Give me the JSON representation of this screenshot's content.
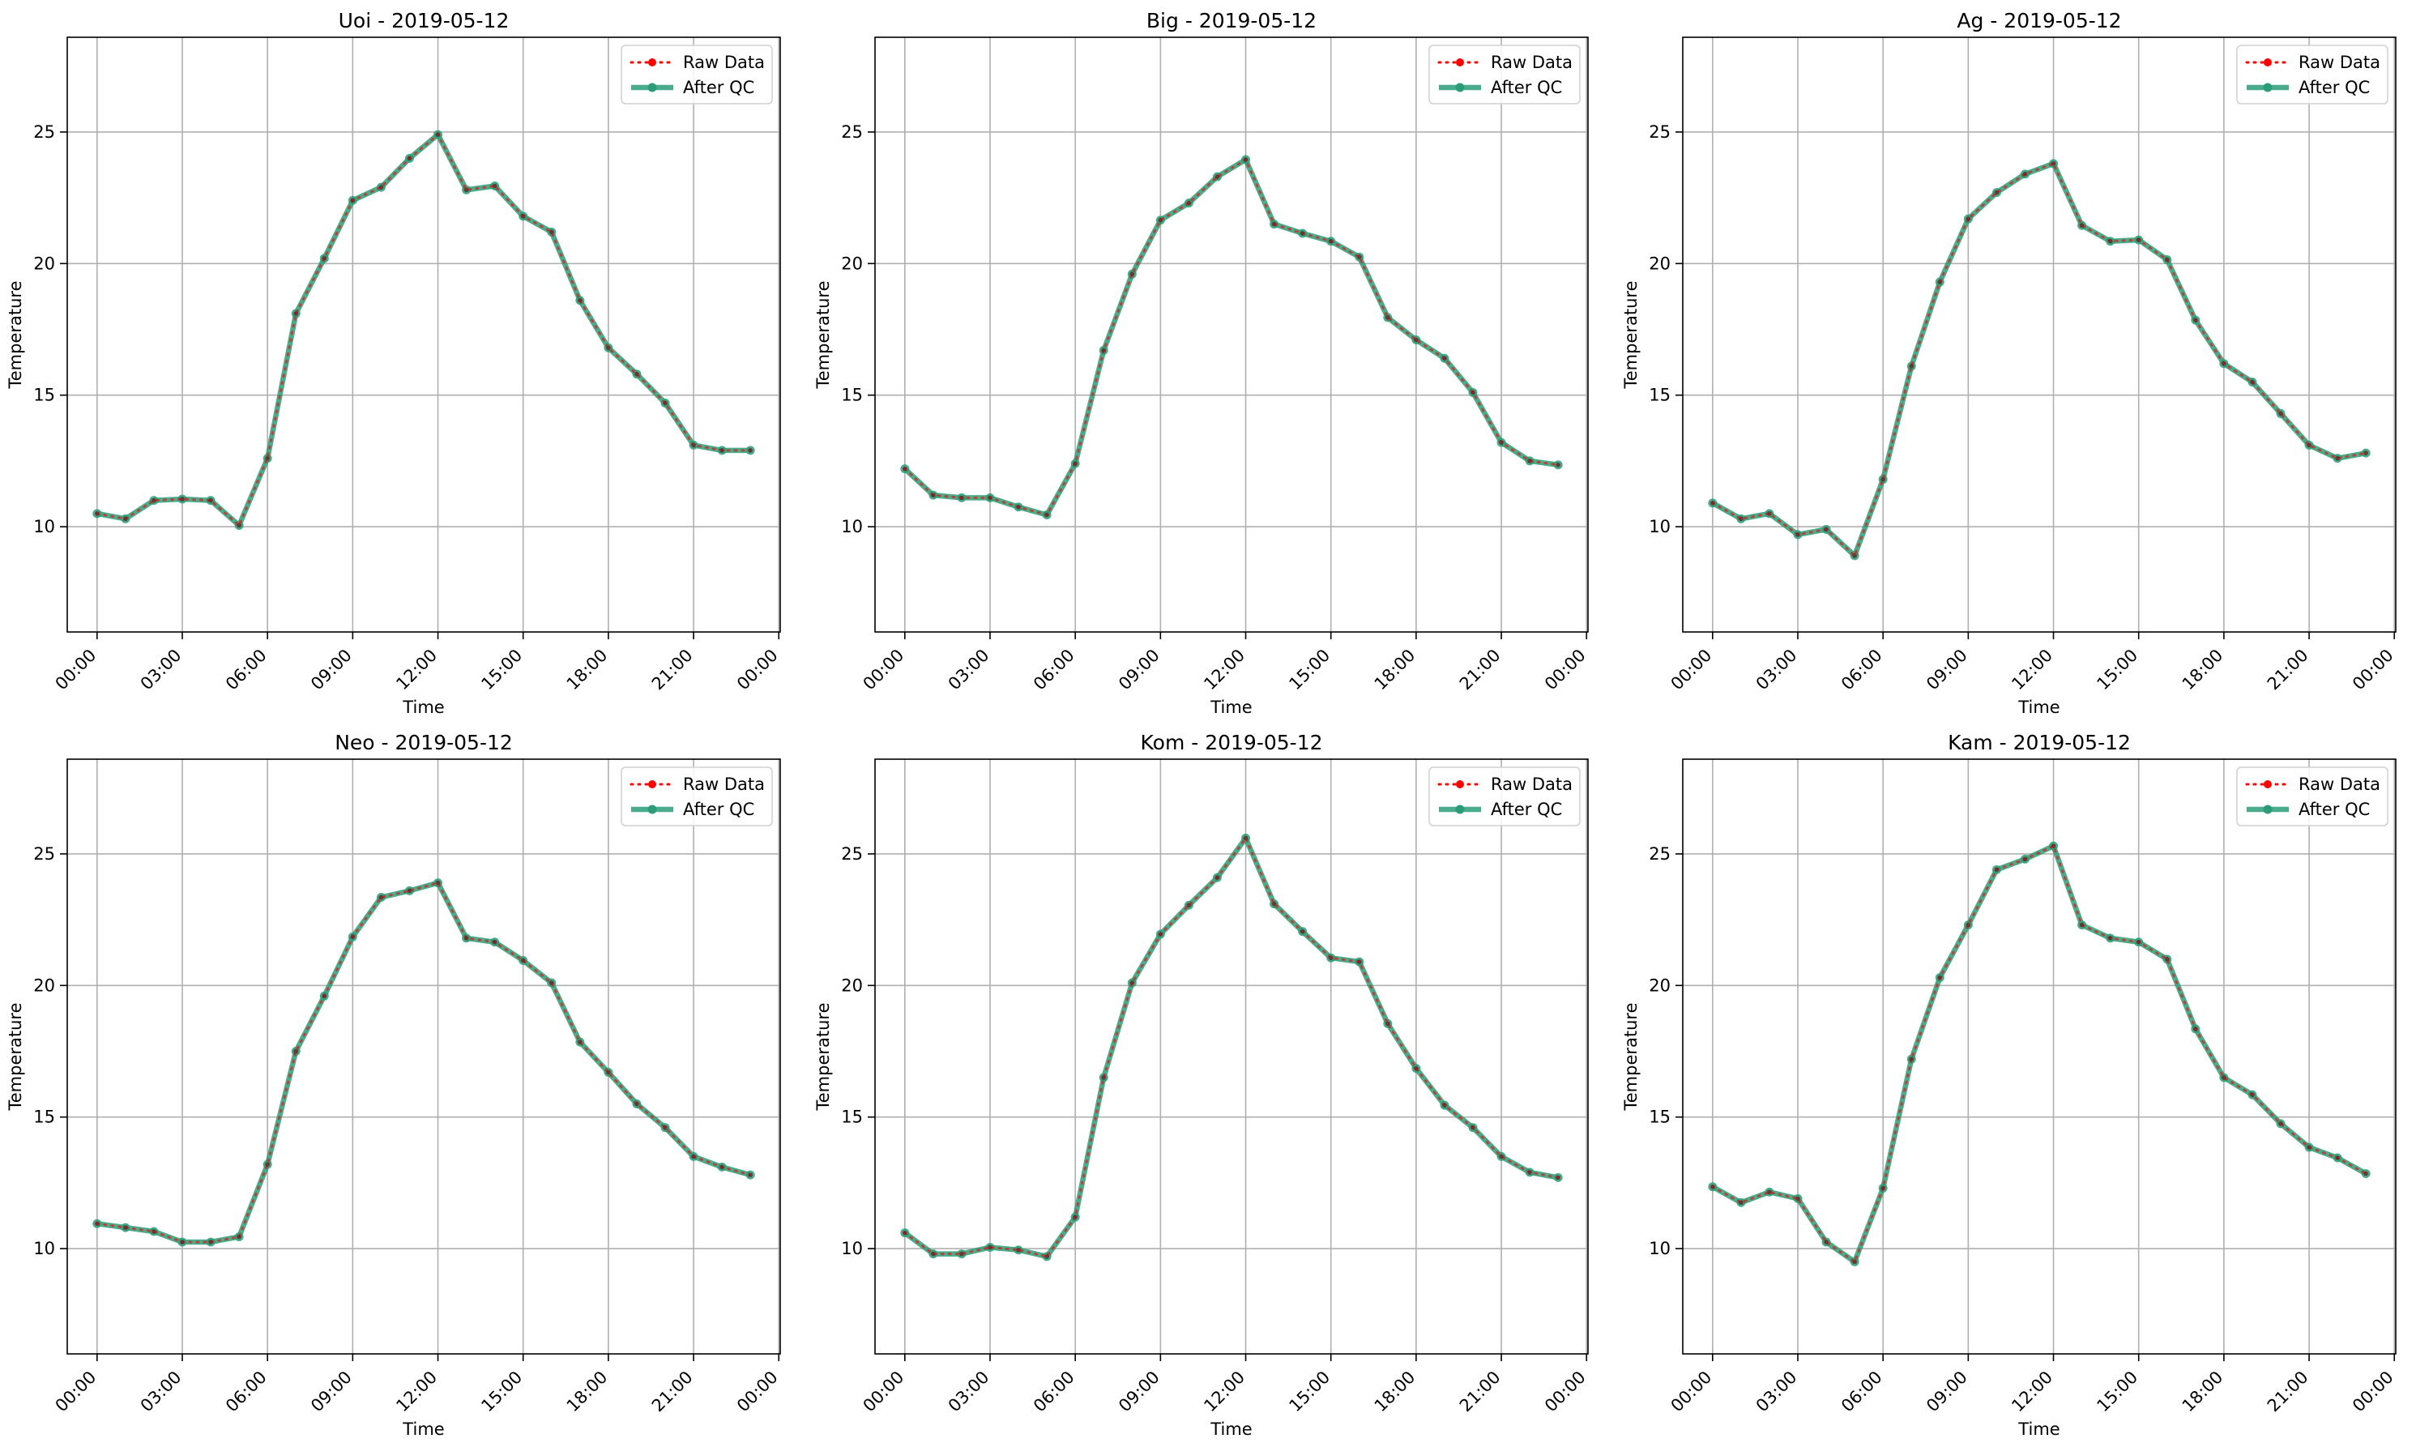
{
  "chart_data": [
    {
      "type": "line",
      "title": "Uoi - 2019-05-12",
      "xlabel": "Time",
      "ylabel": "Temperature",
      "x_ticks": [
        "00:00",
        "03:00",
        "06:00",
        "09:00",
        "12:00",
        "15:00",
        "18:00",
        "21:00",
        "00:00"
      ],
      "y_ticks": [
        10,
        15,
        20,
        25
      ],
      "ylim": [
        6,
        28.6
      ],
      "grid": true,
      "legend": "top-right",
      "x_hours": [
        0,
        1,
        2,
        3,
        4,
        5,
        6,
        7,
        8,
        9,
        10,
        11,
        12,
        13,
        14,
        15,
        16,
        17,
        18,
        19,
        20,
        21,
        22,
        23
      ],
      "series": [
        {
          "name": "Raw Data",
          "color": "#ff0000",
          "values": [
            10.5,
            10.3,
            11.0,
            11.05,
            11.0,
            10.05,
            12.6,
            18.1,
            20.2,
            22.4,
            22.9,
            24.0,
            24.9,
            22.8,
            22.95,
            21.8,
            21.2,
            18.6,
            16.8,
            15.8,
            14.7,
            13.1,
            12.9,
            12.9
          ]
        },
        {
          "name": "After QC",
          "color": "#2a9d78",
          "values": [
            10.5,
            10.3,
            11.0,
            11.05,
            11.0,
            10.05,
            12.6,
            18.1,
            20.2,
            22.4,
            22.9,
            24.0,
            24.9,
            22.8,
            22.95,
            21.8,
            21.2,
            18.6,
            16.8,
            15.8,
            14.7,
            13.1,
            12.9,
            12.9
          ]
        }
      ]
    },
    {
      "type": "line",
      "title": "Big - 2019-05-12",
      "xlabel": "Time",
      "ylabel": "Temperature",
      "x_ticks": [
        "00:00",
        "03:00",
        "06:00",
        "09:00",
        "12:00",
        "15:00",
        "18:00",
        "21:00",
        "00:00"
      ],
      "y_ticks": [
        10,
        15,
        20,
        25
      ],
      "ylim": [
        6,
        28.6
      ],
      "grid": true,
      "legend": "top-right",
      "x_hours": [
        0,
        1,
        2,
        3,
        4,
        5,
        6,
        7,
        8,
        9,
        10,
        11,
        12,
        13,
        14,
        15,
        16,
        17,
        18,
        19,
        20,
        21,
        22,
        23
      ],
      "series": [
        {
          "name": "Raw Data",
          "color": "#ff0000",
          "values": [
            12.2,
            11.2,
            11.1,
            11.1,
            10.75,
            10.45,
            12.4,
            16.7,
            19.6,
            21.65,
            22.3,
            23.3,
            23.95,
            21.5,
            21.15,
            20.85,
            20.25,
            17.95,
            17.1,
            16.4,
            15.1,
            13.2,
            12.5,
            12.35
          ]
        },
        {
          "name": "After QC",
          "color": "#2a9d78",
          "values": [
            12.2,
            11.2,
            11.1,
            11.1,
            10.75,
            10.45,
            12.4,
            16.7,
            19.6,
            21.65,
            22.3,
            23.3,
            23.95,
            21.5,
            21.15,
            20.85,
            20.25,
            17.95,
            17.1,
            16.4,
            15.1,
            13.2,
            12.5,
            12.35
          ]
        }
      ]
    },
    {
      "type": "line",
      "title": "Ag - 2019-05-12",
      "xlabel": "Time",
      "ylabel": "Temperature",
      "x_ticks": [
        "00:00",
        "03:00",
        "06:00",
        "09:00",
        "12:00",
        "15:00",
        "18:00",
        "21:00",
        "00:00"
      ],
      "y_ticks": [
        10,
        15,
        20,
        25
      ],
      "ylim": [
        6,
        28.6
      ],
      "grid": true,
      "legend": "top-right",
      "x_hours": [
        0,
        1,
        2,
        3,
        4,
        5,
        6,
        7,
        8,
        9,
        10,
        11,
        12,
        13,
        14,
        15,
        16,
        17,
        18,
        19,
        20,
        21,
        22,
        23
      ],
      "series": [
        {
          "name": "Raw Data",
          "color": "#ff0000",
          "values": [
            10.9,
            10.3,
            10.5,
            9.7,
            9.9,
            8.9,
            11.8,
            16.1,
            19.3,
            21.7,
            22.7,
            23.4,
            23.8,
            21.45,
            20.85,
            20.9,
            20.15,
            17.85,
            16.2,
            15.5,
            14.3,
            13.1,
            12.6,
            12.8
          ]
        },
        {
          "name": "After QC",
          "color": "#2a9d78",
          "values": [
            10.9,
            10.3,
            10.5,
            9.7,
            9.9,
            8.9,
            11.8,
            16.1,
            19.3,
            21.7,
            22.7,
            23.4,
            23.8,
            21.45,
            20.85,
            20.9,
            20.15,
            17.85,
            16.2,
            15.5,
            14.3,
            13.1,
            12.6,
            12.8
          ]
        }
      ]
    },
    {
      "type": "line",
      "title": "Neo - 2019-05-12",
      "xlabel": "Time",
      "ylabel": "Temperature",
      "x_ticks": [
        "00:00",
        "03:00",
        "06:00",
        "09:00",
        "12:00",
        "15:00",
        "18:00",
        "21:00",
        "00:00"
      ],
      "y_ticks": [
        10,
        15,
        20,
        25
      ],
      "ylim": [
        6,
        28.6
      ],
      "grid": true,
      "legend": "top-right",
      "x_hours": [
        0,
        1,
        2,
        3,
        4,
        5,
        6,
        7,
        8,
        9,
        10,
        11,
        12,
        13,
        14,
        15,
        16,
        17,
        18,
        19,
        20,
        21,
        22,
        23
      ],
      "series": [
        {
          "name": "Raw Data",
          "color": "#ff0000",
          "values": [
            10.95,
            10.8,
            10.65,
            10.25,
            10.25,
            10.45,
            13.2,
            17.5,
            19.6,
            21.85,
            23.35,
            23.6,
            23.9,
            21.8,
            21.65,
            20.95,
            20.1,
            17.85,
            16.7,
            15.5,
            14.6,
            13.5,
            13.1,
            12.8
          ]
        },
        {
          "name": "After QC",
          "color": "#2a9d78",
          "values": [
            10.95,
            10.8,
            10.65,
            10.25,
            10.25,
            10.45,
            13.2,
            17.5,
            19.6,
            21.85,
            23.35,
            23.6,
            23.9,
            21.8,
            21.65,
            20.95,
            20.1,
            17.85,
            16.7,
            15.5,
            14.6,
            13.5,
            13.1,
            12.8
          ]
        }
      ]
    },
    {
      "type": "line",
      "title": "Kom - 2019-05-12",
      "xlabel": "Time",
      "ylabel": "Temperature",
      "x_ticks": [
        "00:00",
        "03:00",
        "06:00",
        "09:00",
        "12:00",
        "15:00",
        "18:00",
        "21:00",
        "00:00"
      ],
      "y_ticks": [
        10,
        15,
        20,
        25
      ],
      "ylim": [
        6,
        28.6
      ],
      "grid": true,
      "legend": "top-right",
      "x_hours": [
        0,
        1,
        2,
        3,
        4,
        5,
        6,
        7,
        8,
        9,
        10,
        11,
        12,
        13,
        14,
        15,
        16,
        17,
        18,
        19,
        20,
        21,
        22,
        23
      ],
      "series": [
        {
          "name": "Raw Data",
          "color": "#ff0000",
          "values": [
            10.6,
            9.8,
            9.8,
            10.05,
            9.95,
            9.7,
            11.2,
            16.5,
            20.1,
            21.95,
            23.05,
            24.1,
            25.6,
            23.1,
            22.05,
            21.05,
            20.9,
            18.55,
            16.85,
            15.45,
            14.6,
            13.5,
            12.9,
            12.7
          ]
        },
        {
          "name": "After QC",
          "color": "#2a9d78",
          "values": [
            10.6,
            9.8,
            9.8,
            10.05,
            9.95,
            9.7,
            11.2,
            16.5,
            20.1,
            21.95,
            23.05,
            24.1,
            25.6,
            23.1,
            22.05,
            21.05,
            20.9,
            18.55,
            16.85,
            15.45,
            14.6,
            13.5,
            12.9,
            12.7
          ]
        }
      ]
    },
    {
      "type": "line",
      "title": "Kam - 2019-05-12",
      "xlabel": "Time",
      "ylabel": "Temperature",
      "x_ticks": [
        "00:00",
        "03:00",
        "06:00",
        "09:00",
        "12:00",
        "15:00",
        "18:00",
        "21:00",
        "00:00"
      ],
      "y_ticks": [
        10,
        15,
        20,
        25
      ],
      "ylim": [
        6,
        28.6
      ],
      "grid": true,
      "legend": "top-right",
      "x_hours": [
        0,
        1,
        2,
        3,
        4,
        5,
        6,
        7,
        8,
        9,
        10,
        11,
        12,
        13,
        14,
        15,
        16,
        17,
        18,
        19,
        20,
        21,
        22,
        23
      ],
      "series": [
        {
          "name": "Raw Data",
          "color": "#ff0000",
          "values": [
            12.35,
            11.75,
            12.15,
            11.9,
            10.25,
            9.5,
            12.3,
            17.2,
            20.3,
            22.3,
            24.4,
            24.8,
            25.3,
            22.3,
            21.8,
            21.65,
            21.0,
            18.35,
            16.5,
            15.85,
            14.75,
            13.85,
            13.45,
            12.85
          ]
        },
        {
          "name": "After QC",
          "color": "#2a9d78",
          "values": [
            12.35,
            11.75,
            12.15,
            11.9,
            10.25,
            9.5,
            12.3,
            17.2,
            20.3,
            22.3,
            24.4,
            24.8,
            25.3,
            22.3,
            21.8,
            21.65,
            21.0,
            18.35,
            16.5,
            15.85,
            14.75,
            13.85,
            13.45,
            12.85
          ]
        }
      ]
    }
  ]
}
